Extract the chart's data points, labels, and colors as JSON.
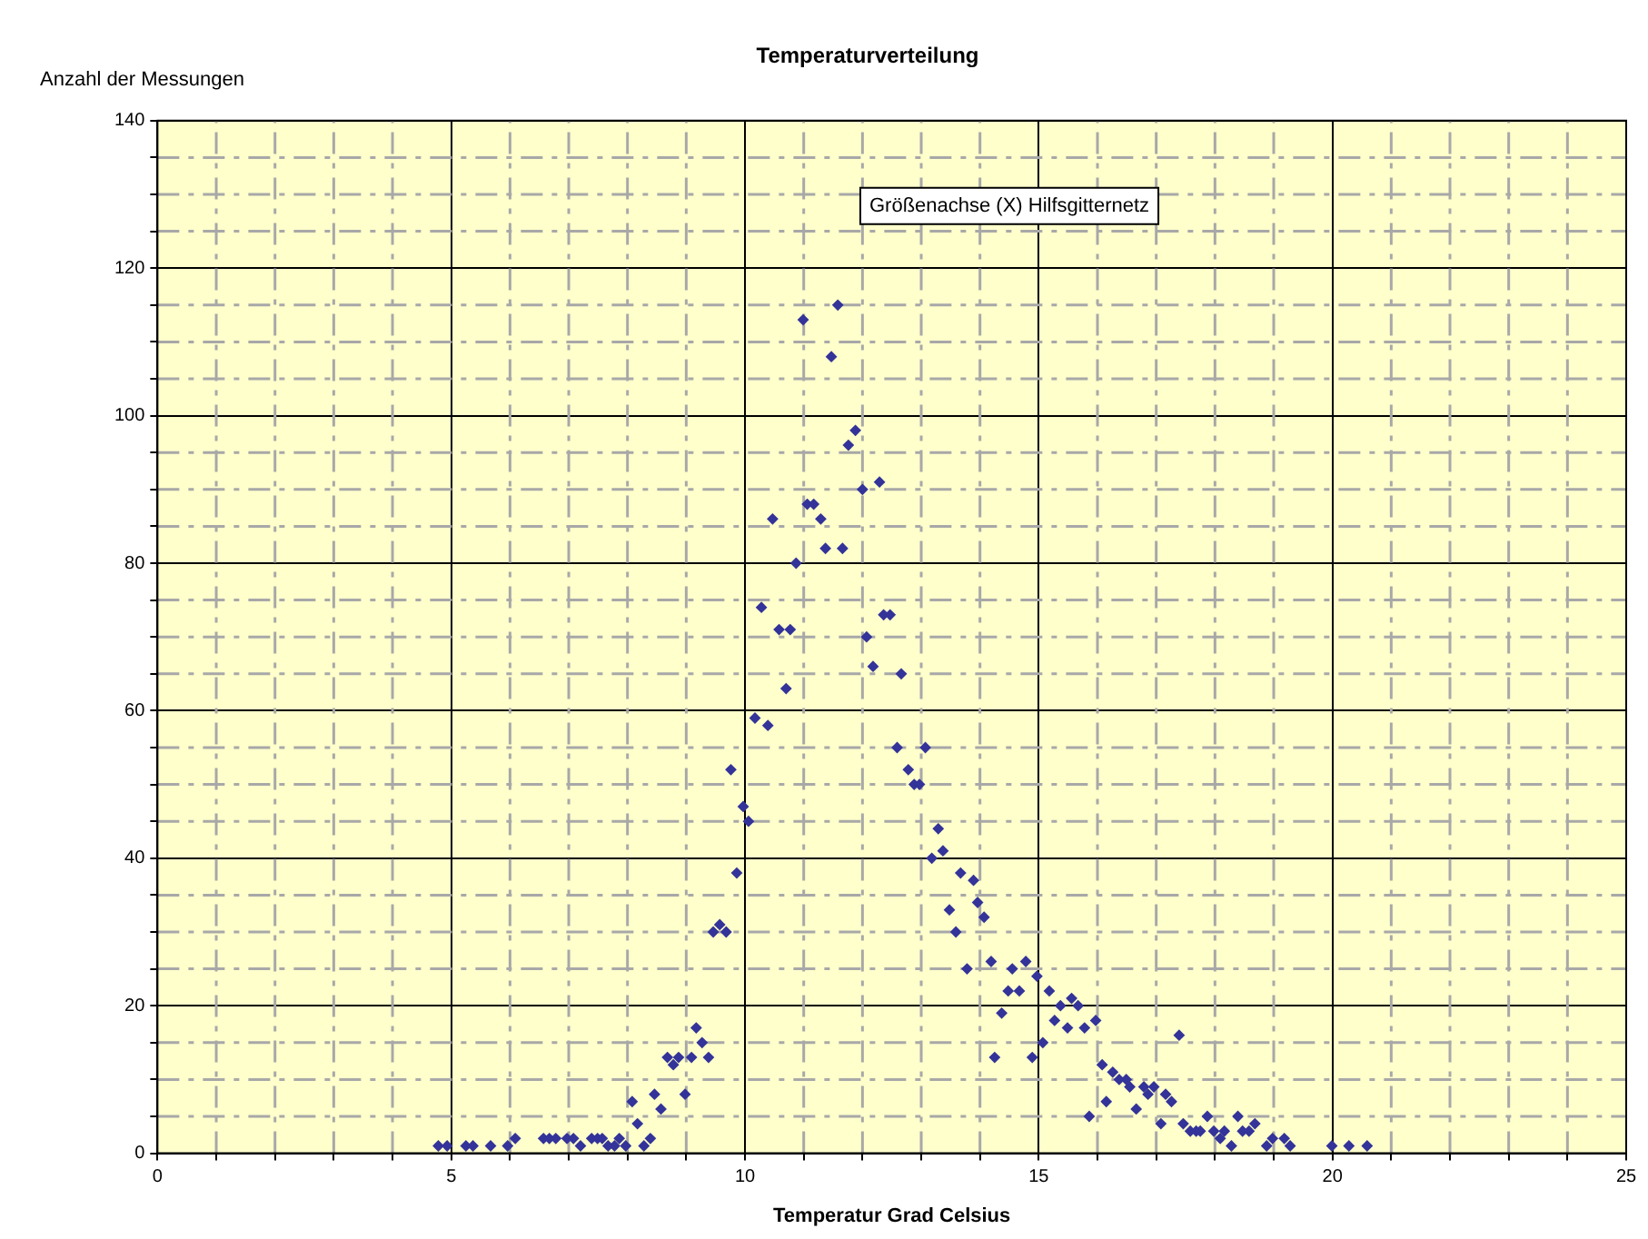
{
  "chart_data": {
    "type": "scatter",
    "title": "Temperaturverteilung",
    "xlabel": "Temperatur Grad Celsius",
    "ylabel": "Anzahl der Messungen",
    "annotations": [
      "Größenachse (X) Hilfsgitternetz"
    ],
    "xlim": [
      0,
      25
    ],
    "ylim": [
      0,
      140
    ],
    "xticks": [
      0,
      {
        "value": 1,
        "label": null
      },
      {
        "value": 2,
        "label": null
      },
      {
        "value": 3,
        "label": null
      },
      {
        "value": 4,
        "label": null
      },
      5,
      {
        "value": 6,
        "label": null
      },
      {
        "value": 7,
        "label": null
      },
      {
        "value": 8,
        "label": null
      },
      {
        "value": 9,
        "label": null
      },
      10,
      {
        "value": 11,
        "label": null
      },
      {
        "value": 12,
        "label": null
      },
      {
        "value": 13,
        "label": null
      },
      {
        "value": 14,
        "label": null
      },
      15,
      {
        "value": 16,
        "label": null
      },
      {
        "value": 17,
        "label": null
      },
      {
        "value": 18,
        "label": null
      },
      {
        "value": 19,
        "label": null
      },
      20,
      {
        "value": 21,
        "label": null
      },
      {
        "value": 22,
        "label": null
      },
      {
        "value": 23,
        "label": null
      },
      {
        "value": 24,
        "label": null
      },
      25
    ],
    "yticks": [
      0,
      {
        "value": 5,
        "label": null
      },
      {
        "value": 10,
        "label": null
      },
      {
        "value": 15,
        "label": null
      },
      20,
      {
        "value": 25,
        "label": null
      },
      {
        "value": 30,
        "label": null
      },
      {
        "value": 35,
        "label": null
      },
      40,
      {
        "value": 45,
        "label": null
      },
      {
        "value": 50,
        "label": null
      },
      {
        "value": 55,
        "label": null
      },
      60,
      {
        "value": 65,
        "label": null
      },
      {
        "value": 70,
        "label": null
      },
      {
        "value": 75,
        "label": null
      },
      80,
      {
        "value": 85,
        "label": null
      },
      {
        "value": 90,
        "label": null
      },
      {
        "value": 95,
        "label": null
      },
      100,
      {
        "value": 105,
        "label": null
      },
      {
        "value": 110,
        "label": null
      },
      {
        "value": 115,
        "label": null
      },
      120,
      {
        "value": 125,
        "label": null
      },
      {
        "value": 130,
        "label": null
      },
      {
        "value": 135,
        "label": null
      },
      140
    ],
    "grid": true,
    "legend": false,
    "marker": "diamond",
    "series": [
      {
        "color": "#333399",
        "x": [
          4.78,
          4.93,
          5.25,
          5.37,
          5.67,
          5.96,
          6.09,
          6.57,
          6.67,
          6.78,
          6.97,
          7.08,
          7.2,
          7.39,
          7.49,
          7.57,
          7.67,
          7.78,
          7.86,
          7.97,
          8.08,
          8.17,
          8.28,
          8.39,
          8.46,
          8.57,
          8.68,
          8.78,
          8.87,
          8.98,
          9.09,
          9.17,
          9.27,
          9.38,
          9.46,
          9.57,
          9.68,
          9.76,
          9.86,
          9.97,
          10.06,
          10.17,
          10.28,
          10.39,
          10.47,
          10.58,
          10.7,
          10.77,
          10.87,
          10.99,
          11.06,
          11.17,
          11.29,
          11.37,
          11.47,
          11.58,
          11.66,
          11.76,
          11.88,
          12.0,
          12.07,
          12.18,
          12.29,
          12.36,
          12.47,
          12.59,
          12.66,
          12.78,
          12.88,
          12.97,
          13.07,
          13.18,
          13.29,
          13.37,
          13.48,
          13.59,
          13.67,
          13.78,
          13.89,
          13.96,
          14.07,
          14.19,
          14.25,
          14.37,
          14.48,
          14.55,
          14.67,
          14.78,
          14.89,
          14.97,
          15.07,
          15.18,
          15.27,
          15.37,
          15.49,
          15.56,
          15.67,
          15.78,
          15.86,
          15.97,
          16.08,
          16.15,
          16.26,
          16.37,
          16.49,
          16.55,
          16.66,
          16.79,
          16.86,
          16.96,
          17.08,
          17.16,
          17.26,
          17.39,
          17.46,
          17.58,
          17.68,
          17.75,
          17.87,
          17.98,
          18.09,
          18.16,
          18.28,
          18.39,
          18.47,
          18.58,
          18.68,
          18.88,
          18.98,
          19.18,
          19.28,
          19.99,
          20.28,
          20.59
        ],
        "values": [
          1,
          1,
          1,
          1,
          1,
          1,
          2,
          2,
          2,
          2,
          2,
          2,
          1,
          2,
          2,
          2,
          1,
          1,
          2,
          1,
          7,
          4,
          1,
          2,
          8,
          6,
          13,
          12,
          13,
          8,
          13,
          17,
          15,
          13,
          30,
          31,
          30,
          52,
          38,
          47,
          45,
          59,
          74,
          58,
          86,
          71,
          63,
          71,
          80,
          113,
          88,
          88,
          86,
          82,
          108,
          115,
          82,
          96,
          98,
          90,
          70,
          66,
          91,
          73,
          73,
          55,
          65,
          52,
          50,
          50,
          55,
          40,
          44,
          41,
          33,
          30,
          38,
          25,
          37,
          34,
          32,
          26,
          13,
          19,
          22,
          25,
          22,
          26,
          13,
          24,
          15,
          22,
          18,
          20,
          17,
          21,
          20,
          17,
          5,
          18,
          12,
          7,
          11,
          10,
          10,
          9,
          6,
          9,
          8,
          9,
          4,
          8,
          7,
          16,
          4,
          3,
          3,
          3,
          5,
          3,
          2,
          3,
          1,
          5,
          3,
          3,
          4,
          1,
          2,
          2,
          1,
          1,
          1,
          1
        ]
      }
    ]
  }
}
